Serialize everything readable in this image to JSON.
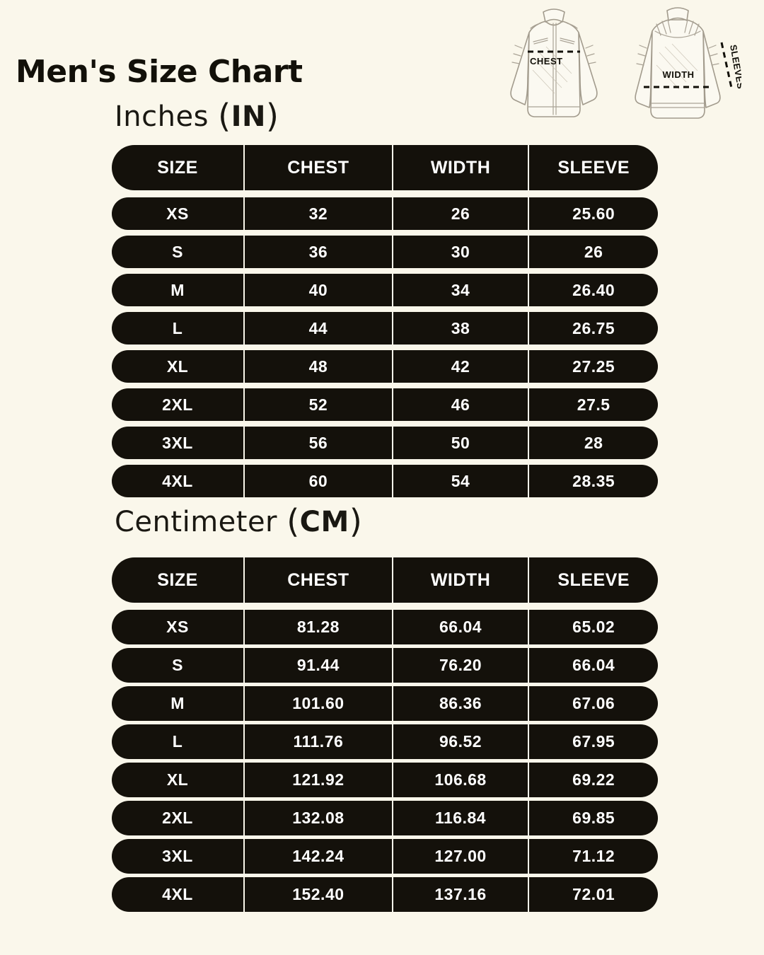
{
  "page": {
    "title": "Men's Size Chart",
    "background_color": "#FAF7EB",
    "row_color": "#14110B",
    "row_text_color": "#FFFFFF"
  },
  "punct": {
    "open": "(",
    "close": ")"
  },
  "diagram": {
    "chest_label": "CHEST",
    "width_label": "WIDTH",
    "sleeves_label": "SLEEVES"
  },
  "sections": [
    {
      "id": "in",
      "heading_text": "Inches ",
      "unit": "IN",
      "columns": [
        "SIZE",
        "CHEST",
        "WIDTH",
        "SLEEVE"
      ],
      "rows": [
        [
          "XS",
          "32",
          "26",
          "25.60"
        ],
        [
          "S",
          "36",
          "30",
          "26"
        ],
        [
          "M",
          "40",
          "34",
          "26.40"
        ],
        [
          "L",
          "44",
          "38",
          "26.75"
        ],
        [
          "XL",
          "48",
          "42",
          "27.25"
        ],
        [
          "2XL",
          "52",
          "46",
          "27.5"
        ],
        [
          "3XL",
          "56",
          "50",
          "28"
        ],
        [
          "4XL",
          "60",
          "54",
          "28.35"
        ]
      ]
    },
    {
      "id": "cm",
      "heading_text": "Centimeter ",
      "unit": "CM",
      "columns": [
        "SIZE",
        "CHEST",
        "WIDTH",
        "SLEEVE"
      ],
      "rows": [
        [
          "XS",
          "81.28",
          "66.04",
          "65.02"
        ],
        [
          "S",
          "91.44",
          "76.20",
          "66.04"
        ],
        [
          "M",
          "101.60",
          "86.36",
          "67.06"
        ],
        [
          "L",
          "111.76",
          "96.52",
          "67.95"
        ],
        [
          "XL",
          "121.92",
          "106.68",
          "69.22"
        ],
        [
          "2XL",
          "132.08",
          "116.84",
          "69.85"
        ],
        [
          "3XL",
          "142.24",
          "127.00",
          "71.12"
        ],
        [
          "4XL",
          "152.40",
          "137.16",
          "72.01"
        ]
      ]
    }
  ]
}
